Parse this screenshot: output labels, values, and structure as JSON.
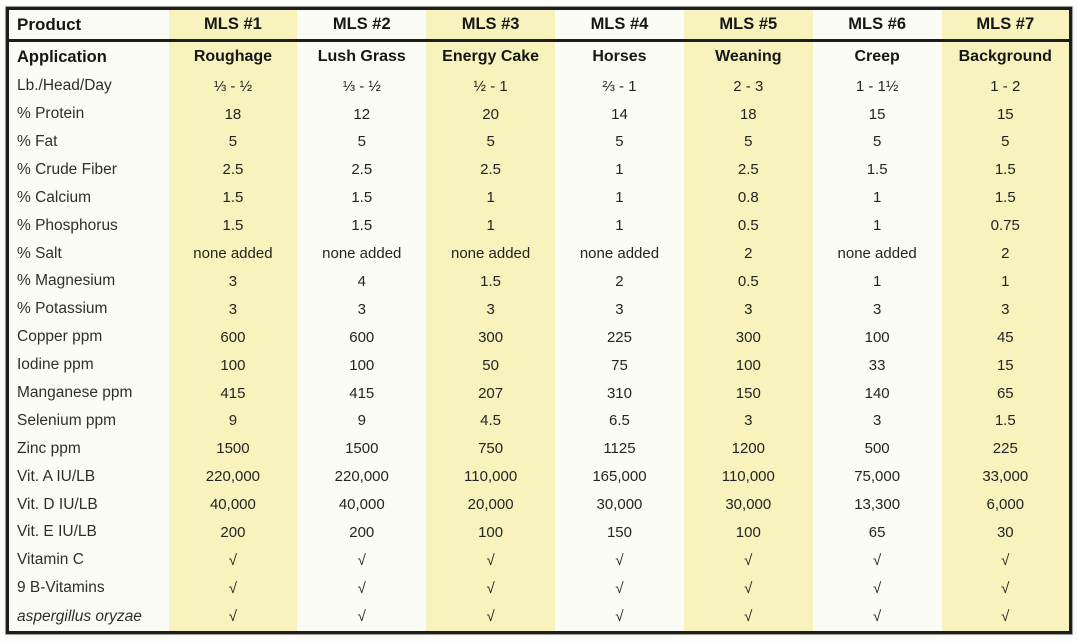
{
  "colors": {
    "highlight": "#f8f2bc",
    "paper": "#fdfdf9",
    "border": "#1d1d1d",
    "text": "#242424"
  },
  "table": {
    "corner_label": "Product",
    "columns": [
      "MLS #1",
      "MLS #2",
      "MLS #3",
      "MLS #4",
      "MLS #5",
      "MLS #6",
      "MLS #7"
    ],
    "highlighted_columns": [
      1,
      3,
      5,
      7
    ],
    "checkmark_glyph": "√",
    "rows": [
      {
        "label": "Application",
        "label_style": "bold",
        "bold_values": true,
        "values": [
          "Roughage",
          "Lush Grass",
          "Energy Cake",
          "Horses",
          "Weaning",
          "Creep",
          "Background"
        ]
      },
      {
        "label": "Lb./Head/Day",
        "values": [
          "⅓ - ½",
          "⅓ - ½",
          "½ - 1",
          "⅔ - 1",
          "2 - 3",
          "1 - 1½",
          "1 - 2"
        ]
      },
      {
        "label": "% Protein",
        "values": [
          "18",
          "12",
          "20",
          "14",
          "18",
          "15",
          "15"
        ]
      },
      {
        "label": "% Fat",
        "values": [
          "5",
          "5",
          "5",
          "5",
          "5",
          "5",
          "5"
        ]
      },
      {
        "label": "% Crude Fiber",
        "values": [
          "2.5",
          "2.5",
          "2.5",
          "1",
          "2.5",
          "1.5",
          "1.5"
        ]
      },
      {
        "label": "% Calcium",
        "values": [
          "1.5",
          "1.5",
          "1",
          "1",
          "0.8",
          "1",
          "1.5"
        ]
      },
      {
        "label": "% Phosphorus",
        "values": [
          "1.5",
          "1.5",
          "1",
          "1",
          "0.5",
          "1",
          "0.75"
        ]
      },
      {
        "label": "% Salt",
        "values": [
          "none added",
          "none added",
          "none added",
          "none added",
          "2",
          "none added",
          "2"
        ]
      },
      {
        "label": "% Magnesium",
        "values": [
          "3",
          "4",
          "1.5",
          "2",
          "0.5",
          "1",
          "1"
        ]
      },
      {
        "label": "% Potassium",
        "values": [
          "3",
          "3",
          "3",
          "3",
          "3",
          "3",
          "3"
        ]
      },
      {
        "label": "Copper ppm",
        "values": [
          "600",
          "600",
          "300",
          "225",
          "300",
          "100",
          "45"
        ]
      },
      {
        "label": "Iodine ppm",
        "values": [
          "100",
          "100",
          "50",
          "75",
          "100",
          "33",
          "15"
        ]
      },
      {
        "label": "Manganese ppm",
        "values": [
          "415",
          "415",
          "207",
          "310",
          "150",
          "140",
          "65"
        ]
      },
      {
        "label": "Selenium ppm",
        "values": [
          "9",
          "9",
          "4.5",
          "6.5",
          "3",
          "3",
          "1.5"
        ]
      },
      {
        "label": "Zinc ppm",
        "values": [
          "1500",
          "1500",
          "750",
          "1125",
          "1200",
          "500",
          "225"
        ]
      },
      {
        "label": "Vit. A IU/LB",
        "values": [
          "220,000",
          "220,000",
          "110,000",
          "165,000",
          "110,000",
          "75,000",
          "33,000"
        ]
      },
      {
        "label": "Vit. D IU/LB",
        "values": [
          "40,000",
          "40,000",
          "20,000",
          "30,000",
          "30,000",
          "13,300",
          "6,000"
        ]
      },
      {
        "label": "Vit. E IU/LB",
        "values": [
          "200",
          "200",
          "100",
          "150",
          "100",
          "65",
          "30"
        ]
      },
      {
        "label": "Vitamin C",
        "values": [
          "√",
          "√",
          "√",
          "√",
          "√",
          "√",
          "√"
        ]
      },
      {
        "label": "9 B-Vitamins",
        "values": [
          "√",
          "√",
          "√",
          "√",
          "√",
          "√",
          "√"
        ]
      },
      {
        "label": "aspergillus oryzae",
        "label_style": "italic",
        "values": [
          "√",
          "√",
          "√",
          "√",
          "√",
          "√",
          "√"
        ]
      }
    ]
  }
}
